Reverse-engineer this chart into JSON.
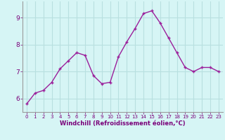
{
  "x": [
    0,
    1,
    2,
    3,
    4,
    5,
    6,
    7,
    8,
    9,
    10,
    11,
    12,
    13,
    14,
    15,
    16,
    17,
    18,
    19,
    20,
    21,
    22,
    23
  ],
  "y": [
    5.8,
    6.2,
    6.3,
    6.6,
    7.1,
    7.4,
    7.7,
    7.6,
    6.85,
    6.55,
    6.6,
    7.55,
    8.1,
    8.6,
    9.15,
    9.25,
    8.8,
    8.25,
    7.7,
    7.15,
    7.0,
    7.15,
    7.15,
    7.0
  ],
  "line_color": "#9b1f9b",
  "marker": "+",
  "bg_color": "#d6f5f5",
  "grid_color": "#b8e0e0",
  "xlabel": "Windchill (Refroidissement éolien,°C)",
  "xlabel_color": "#7a007a",
  "tick_color": "#7a007a",
  "axis_color": "#9b9b9b",
  "ylim": [
    5.5,
    9.6
  ],
  "yticks": [
    6,
    7,
    8,
    9
  ],
  "xticks": [
    0,
    1,
    2,
    3,
    4,
    5,
    6,
    7,
    8,
    9,
    10,
    11,
    12,
    13,
    14,
    15,
    16,
    17,
    18,
    19,
    20,
    21,
    22,
    23
  ]
}
